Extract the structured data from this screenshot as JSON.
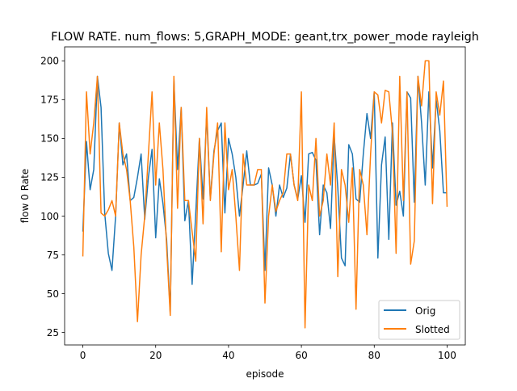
{
  "chart_data": {
    "type": "line",
    "title": "FLOW RATE. num_flows: 5,GRAPH_MODE: geant,trx_power_mode rayleigh",
    "xlabel": "episode",
    "ylabel": "flow 0 Rate",
    "xlim": [
      -5,
      105
    ],
    "ylim": [
      17,
      209
    ],
    "xticks": [
      0,
      20,
      40,
      60,
      80,
      100
    ],
    "yticks": [
      25,
      50,
      75,
      100,
      125,
      150,
      175,
      200
    ],
    "grid": false,
    "legend_position": "lower right",
    "series": [
      {
        "name": "Orig",
        "color": "#1f77b4",
        "values": [
          90,
          148,
          117,
          130,
          190,
          170,
          102,
          76,
          65,
          100,
          160,
          133,
          140,
          110,
          112,
          125,
          140,
          98,
          125,
          143,
          86,
          124,
          108,
          85,
          38,
          188,
          130,
          170,
          97,
          110,
          56,
          102,
          150,
          111,
          165,
          111,
          142,
          155,
          160,
          102,
          150,
          140,
          125,
          100,
          120,
          142,
          120,
          120,
          121,
          127,
          65,
          131,
          120,
          100,
          120,
          112,
          118,
          140,
          120,
          111,
          126,
          96,
          140,
          141,
          136,
          88,
          120,
          115,
          92,
          152,
          118,
          73,
          68,
          146,
          140,
          111,
          109,
          140,
          166,
          150,
          180,
          73,
          133,
          151,
          85,
          160,
          107,
          116,
          100,
          180,
          176,
          109,
          190,
          160,
          120,
          180,
          131,
          175,
          155,
          115,
          115
        ]
      },
      {
        "name": "Slotted",
        "color": "#ff7f0e",
        "values": [
          74,
          180,
          140,
          160,
          190,
          102,
          100,
          104,
          110,
          100,
          160,
          140,
          130,
          110,
          80,
          32,
          75,
          100,
          140,
          180,
          120,
          160,
          130,
          80,
          36,
          190,
          105,
          170,
          110,
          110,
          90,
          71,
          150,
          95,
          170,
          110,
          140,
          160,
          77,
          160,
          117,
          130,
          100,
          65,
          140,
          120,
          120,
          120,
          130,
          130,
          44,
          100,
          120,
          103,
          110,
          115,
          140,
          140,
          120,
          110,
          180,
          28,
          120,
          110,
          150,
          100,
          110,
          140,
          120,
          160,
          61,
          130,
          120,
          96,
          131,
          40,
          130,
          120,
          88,
          140,
          180,
          178,
          160,
          181,
          180,
          154,
          76,
          190,
          110,
          180,
          69,
          84,
          190,
          171,
          200,
          200,
          108,
          180,
          165,
          187,
          106
        ]
      }
    ]
  }
}
